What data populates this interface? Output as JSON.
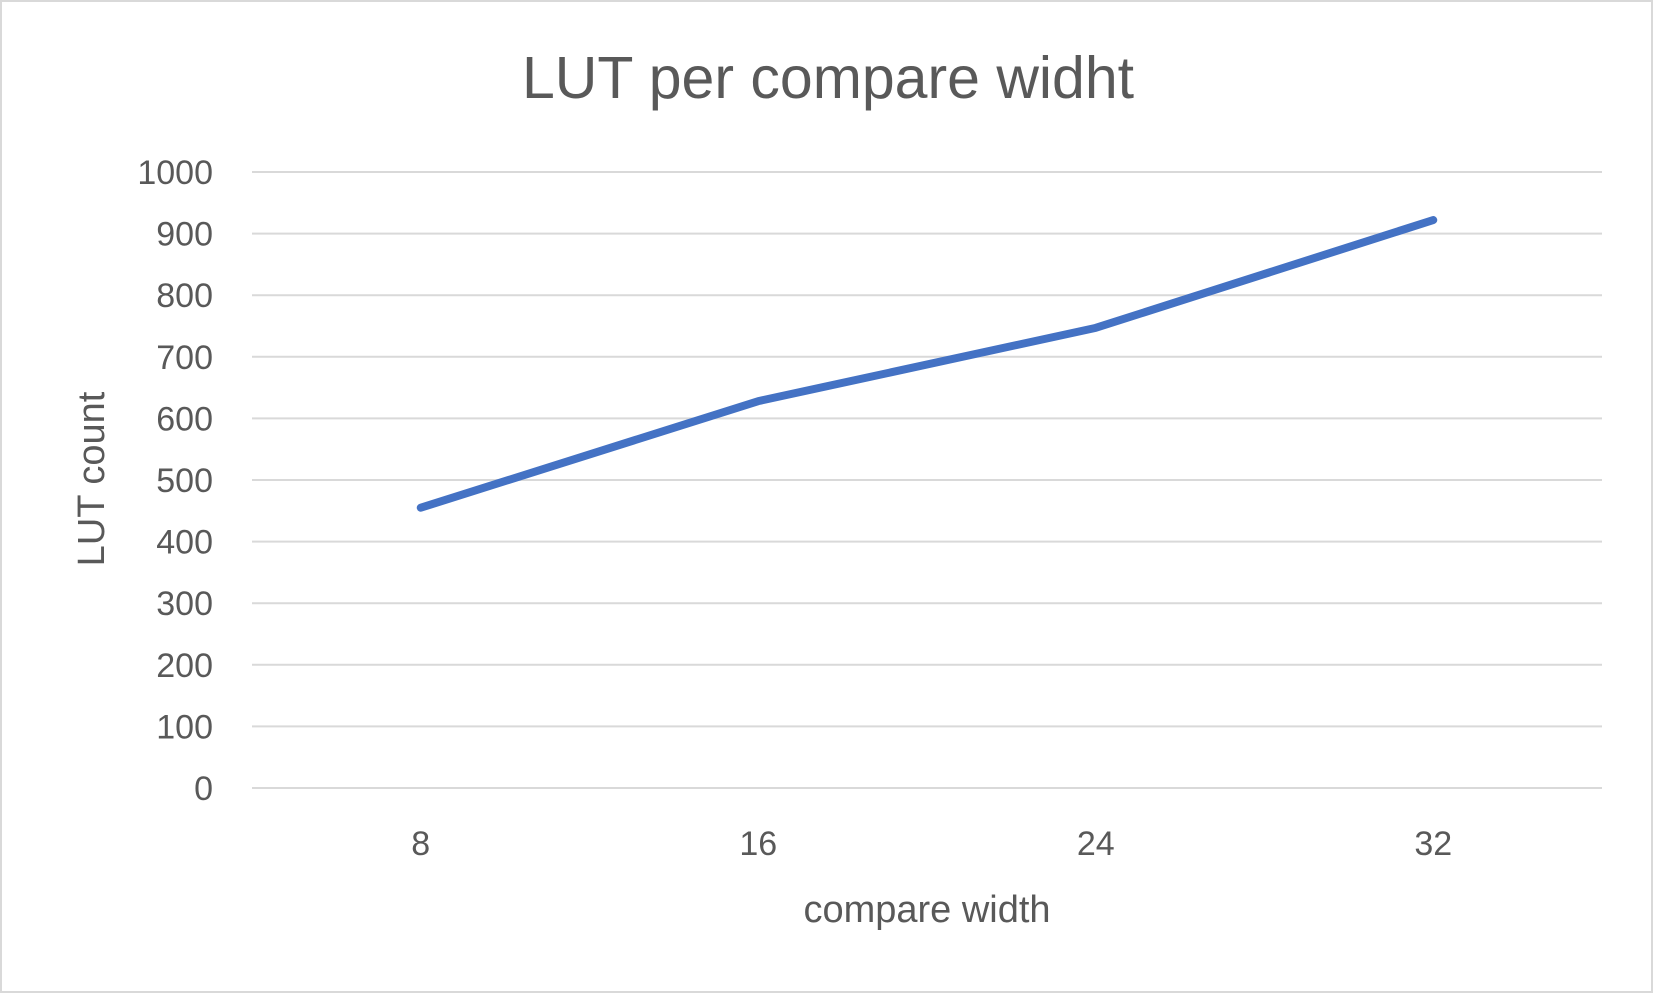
{
  "chart_data": {
    "type": "line",
    "title": "LUT per compare widht",
    "xlabel": "compare width",
    "ylabel": "LUT count",
    "categories": [
      "8",
      "16",
      "24",
      "32"
    ],
    "series": [
      {
        "values": [
          455,
          628,
          747,
          922
        ],
        "color": "#4472C4"
      }
    ],
    "ylim": [
      0,
      1000
    ],
    "yticks": [
      0,
      100,
      200,
      300,
      400,
      500,
      600,
      700,
      800,
      900,
      1000
    ],
    "grid": true,
    "legend": "none"
  },
  "colors": {
    "series": "#4472C4",
    "gridline": "#d9d9d9",
    "text": "#595959",
    "border": "#d9d9d9"
  }
}
